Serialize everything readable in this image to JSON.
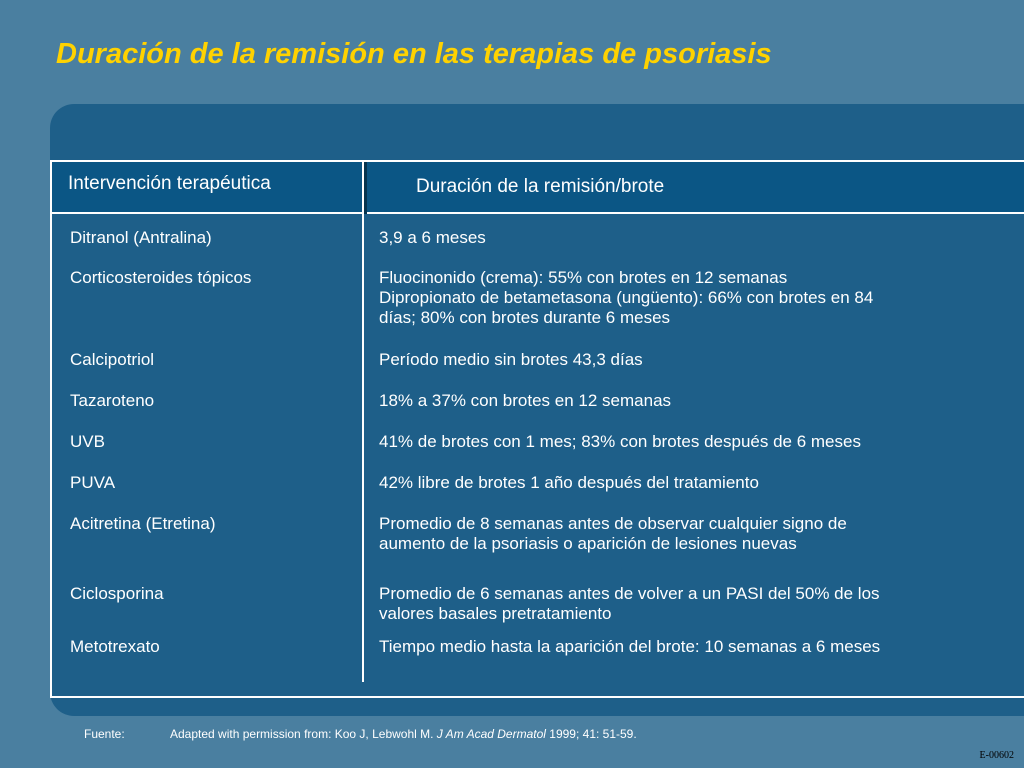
{
  "title": "Duración de la remisión en las terapias de psoriasis",
  "table": {
    "headers": [
      "Intervención terapéutica",
      "Duración de la remisión/brote"
    ],
    "rows": [
      {
        "therapy": "Ditranol (Antralina)",
        "duration": [
          "3,9 a 6 meses"
        ]
      },
      {
        "therapy": "Corticosteroides tópicos",
        "duration": [
          "Fluocinonido (crema): 55% con brotes en 12 semanas",
          "Dipropionato de betametasona (ungüento): 66% con brotes  en 84",
          "días; 80% con brotes durante 6 meses"
        ]
      },
      {
        "therapy": "Calcipotriol",
        "duration": [
          "Período medio sin brotes 43,3 días"
        ]
      },
      {
        "therapy": "Tazaroteno",
        "duration": [
          "18% a 37% con brotes en 12 semanas"
        ]
      },
      {
        "therapy": "UVB",
        "duration": [
          "41% de brotes con 1 mes; 83% con brotes después de 6 meses"
        ]
      },
      {
        "therapy": "PUVA",
        "duration": [
          "42% libre de brotes 1 año después del tratamiento"
        ]
      },
      {
        "therapy": "Acitretina (Etretina)",
        "duration": [
          "Promedio de 8 semanas antes de observar cualquier signo de",
          "aumento de la psoriasis o aparición de lesiones nuevas"
        ]
      },
      {
        "therapy": "Ciclosporina",
        "duration": [
          "Promedio de 6 semanas antes de volver a un PASI del 50% de los",
          "valores basales pretratamiento"
        ]
      },
      {
        "therapy": "Metotrexato",
        "duration": [
          "Tiempo medio hasta la aparición del brote: 10 semanas a 6 meses"
        ]
      }
    ]
  },
  "footnote": {
    "label": "Fuente:",
    "text_before": "Adapted with permission from: Koo J, Lebwohl M. ",
    "journal": "J Am Acad Dermatol",
    "text_after": " 1999; 41: 51-59."
  },
  "slide_code": "E-00602",
  "colors": {
    "background": "#4a7fa0",
    "panel": "#1e5f89",
    "header": "#0b5685",
    "title": "#ffd200"
  }
}
